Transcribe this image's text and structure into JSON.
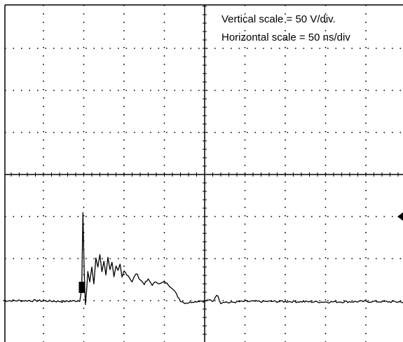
{
  "chart_data": {
    "type": "line",
    "title": "",
    "xlabel": "",
    "ylabel": "",
    "annotations": [
      "Vertical scale = 50 V/div.",
      "Horizontal scale = 50 ns/div"
    ],
    "grid": true,
    "x_unit": "div",
    "y_unit": "div",
    "xlim": [
      -5,
      5
    ],
    "ylim": [
      -4,
      4
    ],
    "ground_marker_y": -1.0,
    "trigger_marker_x": -3.0,
    "series": [
      {
        "x": [
          -5.0,
          -4.2,
          -3.5,
          -3.1,
          -3.05,
          -3.02,
          -2.99,
          -2.96,
          -2.93,
          -2.9,
          -2.85,
          -2.8,
          -2.75,
          -2.7,
          -2.65,
          -2.6,
          -2.55,
          -2.5,
          -2.45,
          -2.4,
          -2.35,
          -2.3,
          -2.25,
          -2.2,
          -2.15,
          -2.1,
          -2.05,
          -2.0,
          -1.9,
          -1.8,
          -1.7,
          -1.6,
          -1.5,
          -1.4,
          -1.3,
          -1.2,
          -1.1,
          -1.0,
          -0.9,
          -0.8,
          -0.7,
          -0.6,
          -0.5,
          -0.4,
          -0.3,
          -0.2,
          -0.1,
          0.0,
          0.1,
          0.2,
          0.3,
          0.4,
          0.5,
          0.6,
          0.8,
          1.0,
          2.0,
          3.0,
          4.0,
          5.0
        ],
        "y": [
          -3.0,
          -3.0,
          -3.02,
          -3.0,
          -2.7,
          -0.9,
          -2.3,
          -3.1,
          -2.8,
          -2.3,
          -2.55,
          -2.2,
          -2.6,
          -2.0,
          -2.2,
          -1.9,
          -2.3,
          -2.05,
          -2.4,
          -1.95,
          -2.25,
          -2.1,
          -2.45,
          -2.2,
          -2.3,
          -2.15,
          -2.45,
          -2.3,
          -2.4,
          -2.55,
          -2.35,
          -2.5,
          -2.6,
          -2.5,
          -2.62,
          -2.55,
          -2.6,
          -2.55,
          -2.62,
          -2.7,
          -2.85,
          -3.0,
          -3.05,
          -3.05,
          -3.02,
          -3.02,
          -3.0,
          -3.02,
          -2.98,
          -3.03,
          -2.85,
          -3.05,
          -3.02,
          -3.05,
          -3.03,
          -3.02,
          -3.02,
          -3.03,
          -3.02,
          -3.03
        ]
      }
    ]
  }
}
